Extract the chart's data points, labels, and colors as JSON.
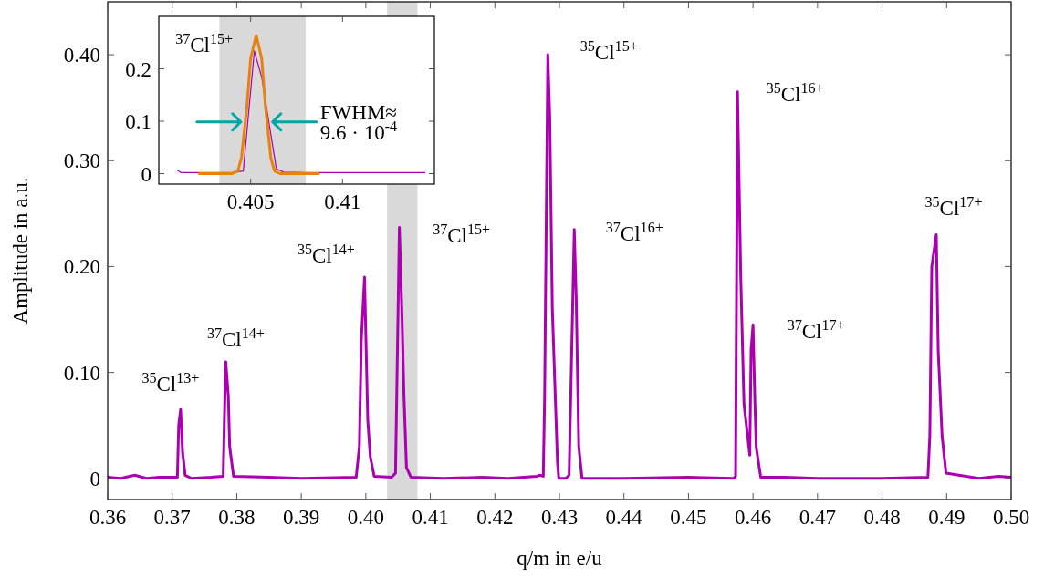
{
  "chart_data": [
    {
      "type": "line",
      "xlabel": "q/m in e/u",
      "ylabel": "Amplitude in a.u.",
      "xlim": [
        0.36,
        0.5
      ],
      "ylim": [
        -0.02,
        0.45
      ],
      "xticks": [
        0.36,
        0.37,
        0.38,
        0.39,
        {
          "value": 0.4,
          "label": "0.40"
        },
        0.41,
        0.42,
        0.43,
        0.44,
        0.45,
        0.46,
        0.47,
        0.48,
        0.49,
        {
          "value": 0.5,
          "label": "0.50"
        }
      ],
      "yticks": [
        0,
        {
          "value": 0.1,
          "label": "0.10"
        },
        {
          "value": 0.2,
          "label": "0.20"
        },
        {
          "value": 0.3,
          "label": "0.30"
        },
        {
          "value": 0.4,
          "label": "0.40"
        }
      ],
      "bands": [
        {
          "axis": "x",
          "from": 0.4033,
          "to": 0.408,
          "color": "#d9d9d9"
        }
      ],
      "series": [
        {
          "color": "#aa00b0",
          "x": [
            0.36,
            0.362,
            0.3642,
            0.366,
            0.368,
            0.3708,
            0.371,
            0.3713,
            0.3716,
            0.372,
            0.373,
            0.376,
            0.3779,
            0.3781,
            0.3783,
            0.3787,
            0.3789,
            0.3795,
            0.385,
            0.39,
            0.3985,
            0.399,
            0.3993,
            0.3998,
            0.4003,
            0.4007,
            0.4013,
            0.404,
            0.4046,
            0.4052,
            0.4056,
            0.4059,
            0.4063,
            0.407,
            0.412,
            0.418,
            0.422,
            0.4265,
            0.427,
            0.4275,
            0.4277,
            0.4282,
            0.4285,
            0.4289,
            0.4297,
            0.4299,
            0.431,
            0.4315,
            0.4323,
            0.4326,
            0.433,
            0.4335,
            0.44,
            0.45,
            0.457,
            0.4573,
            0.4576,
            0.4581,
            0.4586,
            0.4595,
            0.4597,
            0.46,
            0.4603,
            0.4605,
            0.4612,
            0.465,
            0.47,
            0.475,
            0.48,
            0.4871,
            0.4874,
            0.4877,
            0.4884,
            0.4887,
            0.4893,
            0.4899,
            0.493,
            0.495,
            0.498,
            0.5
          ],
          "values": [
            0.001,
            0,
            0.003,
            0,
            0.001,
            0.001,
            0.05,
            0.065,
            0.025,
            0.003,
            0,
            0.001,
            0.002,
            0.06,
            0.11,
            0.077,
            0.03,
            0.002,
            0.001,
            0,
            0.001,
            0.03,
            0.13,
            0.19,
            0.055,
            0.02,
            0.002,
            0.001,
            0.005,
            0.237,
            0.155,
            0.08,
            0.01,
            0.001,
            0,
            0.001,
            0,
            0.002,
            0.003,
            0.002,
            0.075,
            0.4,
            0.342,
            0.16,
            0.015,
            0,
            0,
            0.003,
            0.235,
            0.17,
            0.03,
            0,
            0,
            0.001,
            0,
            0.002,
            0.365,
            0.19,
            0.07,
            0.022,
            0.121,
            0.145,
            0.07,
            0.029,
            0.001,
            0.001,
            0,
            0,
            0,
            0.001,
            0.04,
            0.2,
            0.23,
            0.12,
            0.04,
            0.005,
            0.002,
            0,
            0.002,
            0.001
          ]
        }
      ],
      "annotations": [
        {
          "text": "$^{35}$Cl$^{13+}$",
          "x": 0.3713,
          "y": 0.065
        },
        {
          "text": "$^{37}$Cl$^{14+}$",
          "x": 0.3783,
          "y": 0.11
        },
        {
          "text": "$^{35}$Cl$^{14+}$",
          "x": 0.3998,
          "y": 0.19
        },
        {
          "text": "$^{37}$Cl$^{15+}$",
          "x": 0.4052,
          "y": 0.237
        },
        {
          "text": "$^{35}$Cl$^{15+}$",
          "x": 0.4282,
          "y": 0.4
        },
        {
          "text": "$^{37}$Cl$^{16+}$",
          "x": 0.4323,
          "y": 0.235
        },
        {
          "text": "$^{35}$Cl$^{16+}$",
          "x": 0.4576,
          "y": 0.365
        },
        {
          "text": "$^{37}$Cl$^{17+}$",
          "x": 0.46,
          "y": 0.145
        },
        {
          "text": "$^{35}$Cl$^{17+}$",
          "x": 0.4884,
          "y": 0.23
        }
      ]
    },
    {
      "type": "line",
      "xlim": [
        0.4,
        0.415
      ],
      "ylim": [
        -0.02,
        0.3
      ],
      "xticks": [
        0.405,
        0.41
      ],
      "yticks": [
        0,
        0.1,
        0.2
      ],
      "bands": [
        {
          "axis": "x",
          "from": 0.4033,
          "to": 0.408,
          "color": "#d9d9d9"
        }
      ],
      "series": [
        {
          "color": "#aa00b0",
          "x": [
            0.401,
            0.4012,
            0.402,
            0.403,
            0.404,
            0.4046,
            0.4052,
            0.4056,
            0.4064,
            0.4068,
            0.408,
            0.41,
            0.412,
            0.4145
          ],
          "values": [
            0.007,
            0.002,
            0.002,
            0.002,
            0.002,
            0.005,
            0.234,
            0.184,
            0.009,
            0.003,
            0.002,
            0.002,
            0.002,
            0.002
          ]
        },
        {
          "color": "#e8820c",
          "x": [
            0.4022,
            0.404,
            0.4043,
            0.4045,
            0.4048,
            0.405,
            0.4053,
            0.4056,
            0.4058,
            0.4061,
            0.4063,
            0.4066,
            0.4087
          ],
          "values": [
            0,
            0,
            0.005,
            0.03,
            0.13,
            0.22,
            0.264,
            0.22,
            0.13,
            0.03,
            0.005,
            0,
            0
          ]
        }
      ],
      "annotations": [
        {
          "text": "$^{37}$Cl$^{15+}$",
          "x": 0.4052,
          "y": 0.234
        },
        {
          "text": "FWHM≈\n9.6 · 10$^{-4}$",
          "x": 0.4058,
          "y": 0.13
        }
      ]
    }
  ]
}
